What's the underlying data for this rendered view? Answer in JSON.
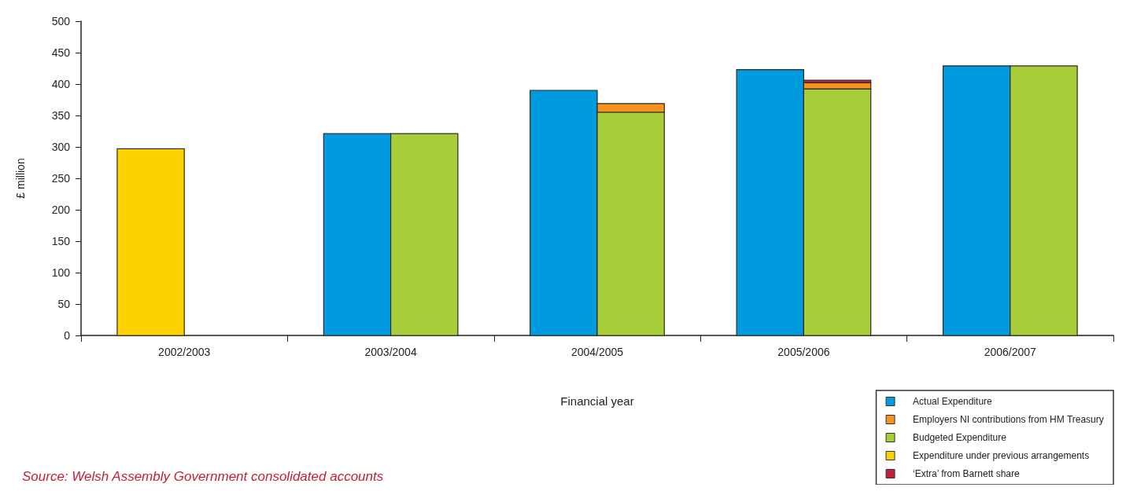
{
  "chart_data": {
    "type": "bar",
    "xlabel": "Financial year",
    "ylabel": "£ million",
    "categories": [
      "2002/2003",
      "2003/2004",
      "2004/2005",
      "2005/2006",
      "2006/2007"
    ],
    "series": [
      {
        "name": "Actual Expenditure",
        "color": "#009ade",
        "values": [
          null,
          321,
          390,
          423,
          429
        ]
      },
      {
        "name": "Employers NI contributions from HM Treasury",
        "color": "#f7941d",
        "values": [
          null,
          null,
          14,
          10,
          null
        ],
        "base": [
          null,
          null,
          355,
          392,
          null
        ]
      },
      {
        "name": "Budgeted Expenditure",
        "color": "#a7cd39",
        "values": [
          null,
          321,
          355,
          392,
          429
        ]
      },
      {
        "name": "Expenditure under previous arrangements",
        "color": "#fed100",
        "values": [
          297,
          null,
          null,
          null,
          null
        ]
      },
      {
        "name": "‘Extra’ from Barnett share",
        "color": "#c4203a",
        "values": [
          null,
          null,
          null,
          4,
          null
        ],
        "base": [
          null,
          null,
          null,
          402,
          null
        ]
      }
    ],
    "ylim": [
      0,
      500
    ],
    "yticks": [
      0,
      50,
      100,
      150,
      200,
      250,
      300,
      350,
      400,
      450,
      500
    ],
    "grid": false,
    "legend": "bottom right",
    "annotations": [
      "Source: Welsh Assembly Government consolidated accounts"
    ]
  }
}
